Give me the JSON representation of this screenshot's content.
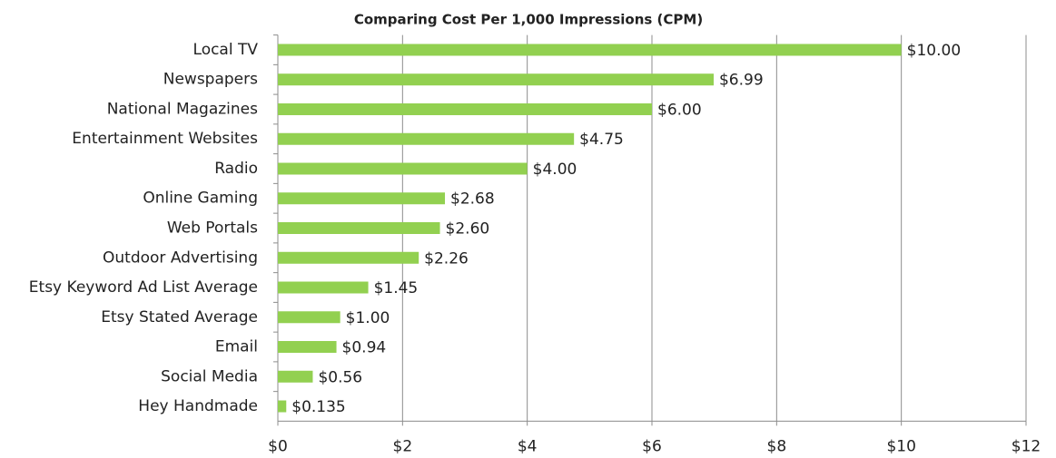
{
  "chart_data": {
    "type": "bar",
    "orientation": "horizontal",
    "title": "Comparing Cost Per 1,000 Impressions (CPM)",
    "categories": [
      "Local TV",
      "Newspapers",
      "National Magazines",
      "Entertainment Websites",
      "Radio",
      "Online Gaming",
      "Web Portals",
      "Outdoor Advertising",
      "Etsy Keyword Ad List Average",
      "Etsy Stated Average",
      "Email",
      "Social Media",
      "Hey Handmade"
    ],
    "values": [
      10,
      6.99,
      6,
      4.75,
      4,
      2.68,
      2.6,
      2.26,
      1.45,
      1,
      0.94,
      0.56,
      0.135
    ],
    "value_labels": [
      "$10.00",
      "$6.99",
      "$6.00",
      "$4.75",
      "$4.00",
      "$2.68",
      "$2.60",
      "$2.26",
      "$1.45",
      "$1.00",
      "$0.94",
      "$0.56",
      "$0.135"
    ],
    "color": "#92d050",
    "xlim": [
      0,
      12
    ],
    "xticks": [
      {
        "value": 0,
        "label": "$0"
      },
      {
        "value": 2,
        "label": "$2"
      },
      {
        "value": 4,
        "label": "$4"
      },
      {
        "value": 6,
        "label": "$6"
      },
      {
        "value": 8,
        "label": "$8"
      },
      {
        "value": 10,
        "label": "$10"
      },
      {
        "value": 12,
        "label": "$12"
      }
    ],
    "grid": true
  }
}
